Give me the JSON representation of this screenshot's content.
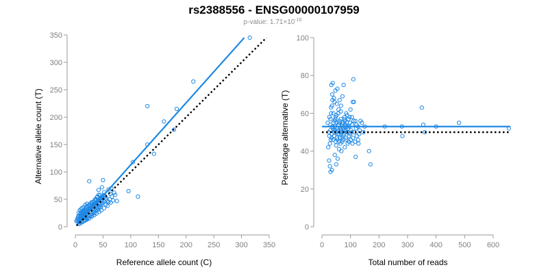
{
  "title": "rs2388556 - ENSG00000107959",
  "subtitle": {
    "prefix": "p-value: 1.71×10",
    "exponent": "-16"
  },
  "colors": {
    "points": "#1e88e5",
    "fit_line": "#1e88e5",
    "reference_line": "#000000",
    "axes": "#9a9a9a",
    "tick_labels": "#7f7f7f"
  },
  "chart_data": [
    {
      "type": "scatter",
      "xlabel": "Reference allele count (C)",
      "ylabel": "Alternative allele count (T)",
      "xlim": [
        0,
        350
      ],
      "ylim": [
        0,
        350
      ],
      "xticks": [
        0,
        50,
        100,
        150,
        200,
        250,
        300,
        350
      ],
      "yticks": [
        0,
        50,
        100,
        150,
        200,
        250,
        300,
        350
      ],
      "grid": false,
      "lines": [
        {
          "kind": "fit",
          "style": "solid",
          "x": [
            2,
            305
          ],
          "y": [
            2,
            345
          ]
        },
        {
          "kind": "reference",
          "style": "dotted",
          "x": [
            2,
            345
          ],
          "y": [
            2,
            345
          ]
        }
      ],
      "points": [
        [
          315,
          345
        ],
        [
          213,
          265
        ],
        [
          130,
          220
        ],
        [
          183,
          215
        ],
        [
          160,
          192
        ],
        [
          178,
          177
        ],
        [
          130,
          150
        ],
        [
          142,
          133
        ],
        [
          104,
          118
        ],
        [
          96,
          65
        ],
        [
          113,
          55
        ],
        [
          75,
          47
        ],
        [
          65,
          70
        ],
        [
          60,
          68
        ],
        [
          63,
          60
        ],
        [
          55,
          52
        ],
        [
          50,
          85
        ],
        [
          25,
          83
        ],
        [
          42,
          67
        ],
        [
          48,
          72
        ],
        [
          52,
          63
        ],
        [
          45,
          58
        ],
        [
          40,
          55
        ],
        [
          38,
          50
        ],
        [
          35,
          48
        ],
        [
          30,
          45
        ],
        [
          28,
          43
        ],
        [
          25,
          40
        ],
        [
          22,
          38
        ],
        [
          20,
          35
        ],
        [
          18,
          33
        ],
        [
          15,
          30
        ],
        [
          12,
          28
        ],
        [
          10,
          25
        ],
        [
          8,
          22
        ],
        [
          6,
          20
        ],
        [
          5,
          18
        ],
        [
          4,
          15
        ],
        [
          3,
          12
        ],
        [
          2,
          10
        ],
        [
          14,
          20
        ],
        [
          16,
          22
        ],
        [
          18,
          24
        ],
        [
          20,
          26
        ],
        [
          22,
          28
        ],
        [
          24,
          30
        ],
        [
          26,
          32
        ],
        [
          28,
          34
        ],
        [
          30,
          36
        ],
        [
          32,
          38
        ],
        [
          34,
          40
        ],
        [
          36,
          42
        ],
        [
          38,
          44
        ],
        [
          40,
          46
        ],
        [
          42,
          48
        ],
        [
          44,
          50
        ],
        [
          46,
          52
        ],
        [
          48,
          54
        ],
        [
          50,
          56
        ],
        [
          52,
          58
        ],
        [
          54,
          55
        ],
        [
          56,
          50
        ],
        [
          58,
          47
        ],
        [
          20,
          14
        ],
        [
          22,
          16
        ],
        [
          24,
          18
        ],
        [
          26,
          20
        ],
        [
          28,
          22
        ],
        [
          30,
          24
        ],
        [
          32,
          26
        ],
        [
          34,
          28
        ],
        [
          36,
          30
        ],
        [
          38,
          32
        ],
        [
          40,
          34
        ],
        [
          42,
          36
        ],
        [
          44,
          38
        ],
        [
          46,
          40
        ],
        [
          48,
          42
        ],
        [
          50,
          44
        ],
        [
          52,
          46
        ],
        [
          10,
          12
        ],
        [
          12,
          14
        ],
        [
          14,
          16
        ],
        [
          16,
          18
        ],
        [
          18,
          20
        ],
        [
          8,
          10
        ],
        [
          6,
          8
        ],
        [
          9,
          15
        ],
        [
          11,
          17
        ],
        [
          13,
          19
        ],
        [
          15,
          21
        ],
        [
          17,
          23
        ],
        [
          19,
          25
        ],
        [
          21,
          27
        ],
        [
          23,
          29
        ],
        [
          25,
          31
        ],
        [
          27,
          33
        ],
        [
          29,
          35
        ],
        [
          31,
          37
        ],
        [
          33,
          39
        ],
        [
          35,
          41
        ],
        [
          37,
          43
        ],
        [
          39,
          45
        ],
        [
          41,
          47
        ],
        [
          43,
          49
        ],
        [
          45,
          51
        ],
        [
          47,
          53
        ],
        [
          12,
          8
        ],
        [
          15,
          10
        ],
        [
          18,
          12
        ],
        [
          20,
          18
        ],
        [
          24,
          22
        ],
        [
          28,
          26
        ],
        [
          32,
          30
        ],
        [
          36,
          34
        ],
        [
          40,
          38
        ],
        [
          44,
          42
        ],
        [
          48,
          46
        ],
        [
          30,
          20
        ],
        [
          35,
          25
        ],
        [
          40,
          30
        ],
        [
          45,
          35
        ],
        [
          26,
          38
        ],
        [
          30,
          42
        ],
        [
          33,
          46
        ],
        [
          36,
          50
        ],
        [
          39,
          54
        ],
        [
          42,
          58
        ],
        [
          14,
          26
        ],
        [
          16,
          28
        ],
        [
          10,
          20
        ],
        [
          7,
          16
        ],
        [
          5,
          12
        ],
        [
          6,
          25
        ],
        [
          8,
          30
        ],
        [
          10,
          32
        ],
        [
          12,
          34
        ],
        [
          15,
          36
        ],
        [
          18,
          40
        ],
        [
          21,
          42
        ],
        [
          55,
          40
        ],
        [
          60,
          45
        ],
        [
          62,
          50
        ],
        [
          66,
          55
        ],
        [
          70,
          62
        ],
        [
          72,
          58
        ],
        [
          68,
          48
        ],
        [
          64,
          44
        ],
        [
          58,
          38
        ],
        [
          52,
          34
        ],
        [
          47,
          30
        ],
        [
          43,
          27
        ],
        [
          38,
          24
        ],
        [
          34,
          21
        ],
        [
          29,
          18
        ],
        [
          25,
          15
        ],
        [
          21,
          13
        ],
        [
          17,
          11
        ],
        [
          13,
          9
        ],
        [
          9,
          7
        ],
        [
          7,
          5
        ],
        [
          11,
          22
        ],
        [
          13,
          24
        ],
        [
          16,
          26
        ],
        [
          19,
          30
        ],
        [
          23,
          33
        ],
        [
          27,
          36
        ],
        [
          31,
          40
        ]
      ]
    },
    {
      "type": "scatter",
      "xlabel": "Total number of reads",
      "ylabel": "Percentage alternative (T)",
      "xlim": [
        0,
        660
      ],
      "ylim": [
        0,
        100
      ],
      "xticks": [
        0,
        100,
        200,
        300,
        400,
        500,
        600
      ],
      "yticks": [
        0,
        20,
        40,
        60,
        80,
        100
      ],
      "grid": false,
      "lines": [
        {
          "kind": "fit",
          "style": "solid",
          "x": [
            0,
            660
          ],
          "y": [
            53,
            53
          ]
        },
        {
          "kind": "reference",
          "style": "dotted",
          "x": [
            0,
            660
          ],
          "y": [
            50,
            50
          ]
        }
      ],
      "points": [
        [
          655,
          52
        ],
        [
          480,
          55
        ],
        [
          400,
          53
        ],
        [
          355,
          54
        ],
        [
          350,
          63
        ],
        [
          360,
          50
        ],
        [
          280,
          53
        ],
        [
          282,
          48
        ],
        [
          220,
          53
        ],
        [
          165,
          40
        ],
        [
          170,
          33
        ],
        [
          135,
          56
        ],
        [
          130,
          49
        ],
        [
          128,
          44
        ],
        [
          120,
          52
        ],
        [
          118,
          37
        ],
        [
          112,
          66
        ],
        [
          108,
          66
        ],
        [
          110,
          78
        ],
        [
          105,
          58
        ],
        [
          100,
          62
        ],
        [
          98,
          55
        ],
        [
          95,
          48
        ],
        [
          92,
          52
        ],
        [
          90,
          44
        ],
        [
          88,
          59
        ],
        [
          85,
          50
        ],
        [
          82,
          54
        ],
        [
          80,
          42
        ],
        [
          78,
          57
        ],
        [
          76,
          75
        ],
        [
          74,
          46
        ],
        [
          72,
          69
        ],
        [
          70,
          53
        ],
        [
          68,
          40
        ],
        [
          66,
          61
        ],
        [
          64,
          50
        ],
        [
          62,
          56
        ],
        [
          60,
          45
        ],
        [
          58,
          62
        ],
        [
          56,
          49
        ],
        [
          54,
          73
        ],
        [
          52,
          55
        ],
        [
          50,
          43
        ],
        [
          48,
          58
        ],
        [
          46,
          51
        ],
        [
          44,
          66
        ],
        [
          42,
          48
        ],
        [
          40,
          60
        ],
        [
          38,
          52
        ],
        [
          36,
          70
        ],
        [
          34,
          47
        ],
        [
          32,
          63
        ],
        [
          30,
          54
        ],
        [
          28,
          44
        ],
        [
          26,
          58
        ],
        [
          24,
          50
        ],
        [
          22,
          42
        ],
        [
          20,
          55
        ],
        [
          25,
          35
        ],
        [
          28,
          32
        ],
        [
          30,
          29
        ],
        [
          35,
          30
        ],
        [
          45,
          38
        ],
        [
          50,
          33
        ],
        [
          55,
          36
        ],
        [
          60,
          41
        ],
        [
          65,
          44
        ],
        [
          70,
          47
        ],
        [
          75,
          52
        ],
        [
          80,
          56
        ],
        [
          85,
          60
        ],
        [
          33,
          75
        ],
        [
          38,
          76
        ],
        [
          42,
          68
        ],
        [
          47,
          72
        ],
        [
          52,
          65
        ],
        [
          57,
          60
        ],
        [
          62,
          67
        ],
        [
          67,
          64
        ],
        [
          30,
          57
        ],
        [
          32,
          60
        ],
        [
          35,
          64
        ],
        [
          37,
          67
        ],
        [
          40,
          55
        ],
        [
          43,
          50
        ],
        [
          45,
          53
        ],
        [
          47,
          57
        ],
        [
          50,
          50
        ],
        [
          53,
          47
        ],
        [
          55,
          52
        ],
        [
          58,
          54
        ],
        [
          61,
          49
        ],
        [
          63,
          52
        ],
        [
          66,
          57
        ],
        [
          69,
          50
        ],
        [
          72,
          54
        ],
        [
          75,
          48
        ],
        [
          78,
          51
        ],
        [
          81,
          53
        ],
        [
          84,
          47
        ],
        [
          87,
          55
        ],
        [
          90,
          50
        ],
        [
          93,
          57
        ],
        [
          96,
          53
        ],
        [
          99,
          49
        ],
        [
          102,
          51
        ],
        [
          106,
          54
        ],
        [
          109,
          47
        ],
        [
          114,
          50
        ],
        [
          117,
          56
        ],
        [
          122,
          48
        ],
        [
          126,
          53
        ],
        [
          132,
          51
        ],
        [
          140,
          55
        ],
        [
          145,
          50
        ],
        [
          150,
          53
        ],
        [
          26,
          48
        ],
        [
          29,
          51
        ],
        [
          31,
          46
        ],
        [
          34,
          49
        ],
        [
          36,
          53
        ],
        [
          39,
          46
        ],
        [
          41,
          51
        ],
        [
          44,
          56
        ],
        [
          48,
          45
        ],
        [
          51,
          59
        ],
        [
          54,
          46
        ],
        [
          57,
          51
        ],
        [
          59,
          55
        ],
        [
          63,
          47
        ],
        [
          67,
          51
        ],
        [
          71,
          45
        ],
        [
          74,
          55
        ],
        [
          77,
          49
        ],
        [
          79,
          58
        ],
        [
          83,
          51
        ],
        [
          86,
          46
        ],
        [
          89,
          53
        ],
        [
          94,
          45
        ],
        [
          97,
          58
        ],
        [
          101,
          46
        ],
        [
          104,
          50
        ],
        [
          107,
          44
        ],
        [
          111,
          56
        ],
        [
          116,
          45
        ],
        [
          121,
          54
        ],
        [
          127,
          46
        ]
      ]
    }
  ]
}
